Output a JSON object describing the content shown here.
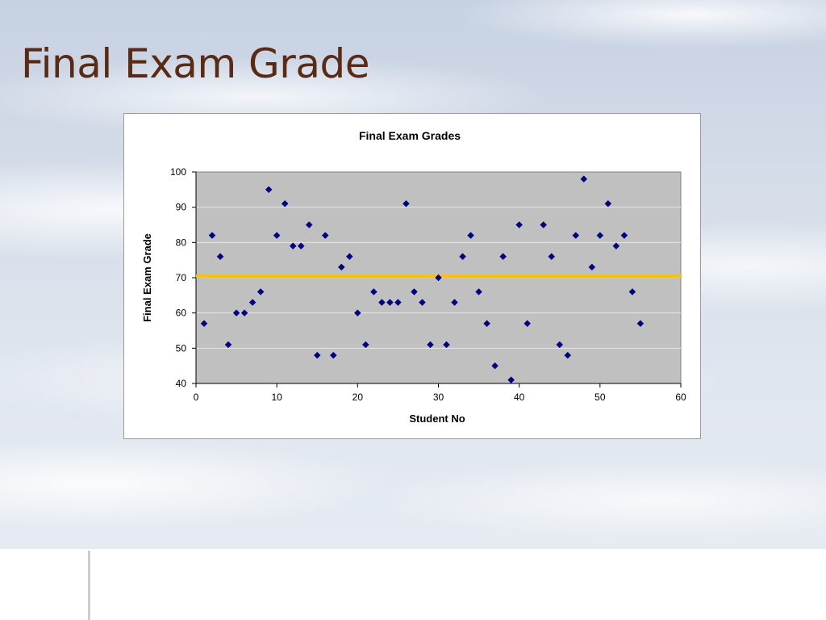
{
  "slide": {
    "title": "Final Exam Grade"
  },
  "colors": {
    "title_text": "#5a2a14",
    "plot_background": "#c0c0c0",
    "marker": "#000080",
    "reference_line": "#ffc000"
  },
  "chart_data": {
    "type": "scatter",
    "title": "Final Exam Grades",
    "xlabel": "Student No",
    "ylabel": "Final Exam Grade",
    "xlim": [
      0,
      60
    ],
    "ylim": [
      40,
      100
    ],
    "x_ticks": [
      0,
      10,
      20,
      30,
      40,
      50,
      60
    ],
    "y_ticks": [
      40,
      50,
      60,
      70,
      80,
      90,
      100
    ],
    "grid": "horizontal",
    "legend": "none",
    "marker_shape": "diamond",
    "reference_line_y": 70.4,
    "series": [
      {
        "x": [
          1,
          2,
          3,
          4,
          5,
          6,
          7,
          8,
          9,
          10,
          11,
          12,
          13,
          14,
          15,
          16,
          17,
          18,
          19,
          20,
          21,
          22,
          23,
          24,
          25,
          26,
          27,
          28,
          29,
          30,
          31,
          32,
          33,
          34,
          35,
          36,
          37,
          38,
          39,
          40,
          41,
          42,
          43,
          44,
          45,
          46,
          47,
          48,
          49,
          50,
          51,
          52,
          53,
          54,
          55
        ],
        "y": [
          57,
          82,
          76,
          51,
          60,
          60,
          63,
          66,
          95,
          82,
          91,
          79,
          79,
          85,
          48,
          82,
          48,
          73,
          76,
          60,
          51,
          66,
          63,
          63,
          63,
          91,
          66,
          63,
          51,
          70,
          51,
          63,
          76,
          82,
          66,
          57,
          45,
          76,
          41,
          85,
          57,
          null,
          85,
          76,
          51,
          48,
          82,
          98,
          73,
          82,
          91,
          79,
          82,
          66,
          57
        ]
      }
    ]
  }
}
